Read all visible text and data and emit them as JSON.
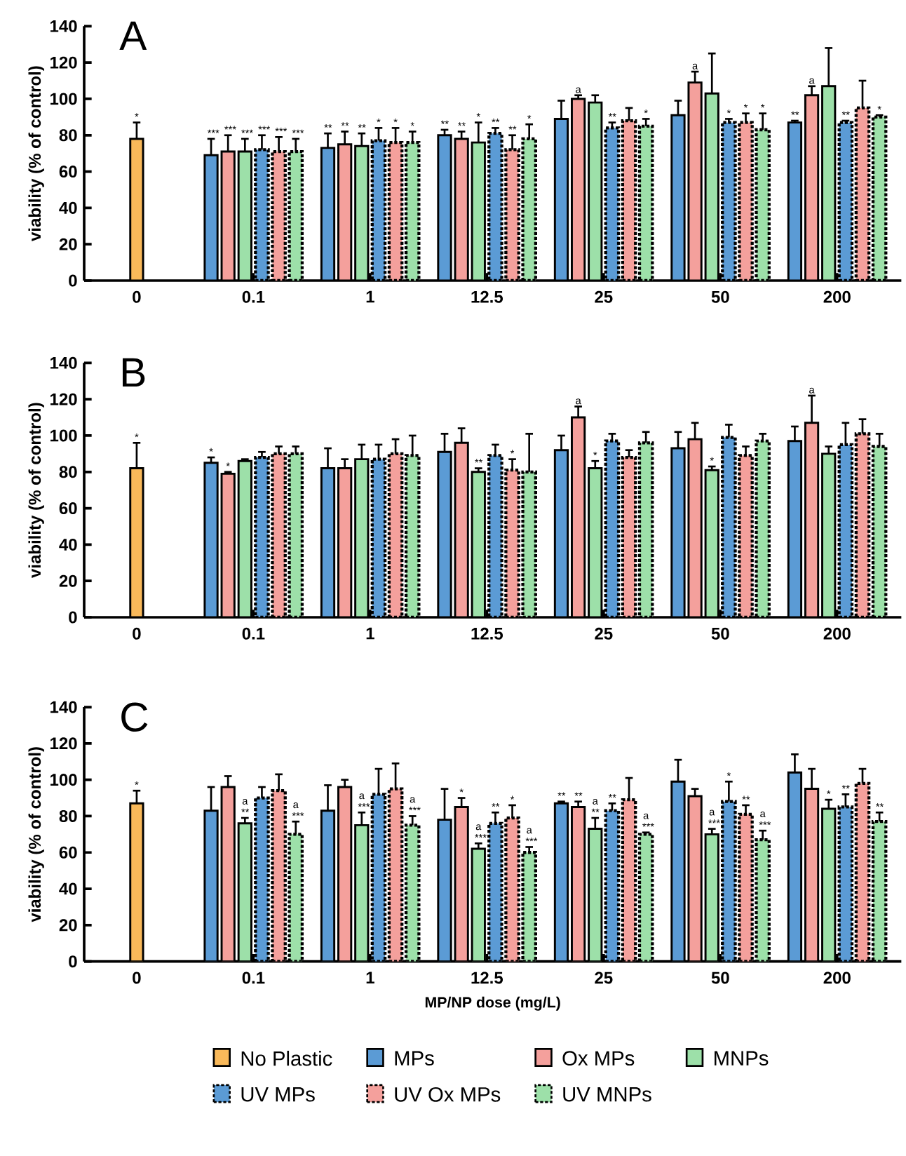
{
  "chart_data": [
    {
      "type": "bar",
      "title": "A",
      "ylabel": "viability (% of control)",
      "categories": [
        "0",
        "0.1",
        "1",
        "12.5",
        "25",
        "50",
        "200"
      ],
      "ylim": [
        0,
        140
      ],
      "yticks": [
        0,
        20,
        40,
        60,
        80,
        100,
        120,
        140
      ],
      "legend": false,
      "series": [
        {
          "color": "#f9b95a",
          "values": [
            78,
            null,
            null,
            null,
            null,
            null,
            null
          ],
          "errors": [
            9,
            null,
            null,
            null,
            null,
            null,
            null
          ],
          "value_labels": [
            "*",
            null,
            null,
            null,
            null,
            null,
            null
          ]
        },
        {
          "color": "#5b9bd5",
          "values": [
            null,
            69,
            73,
            80,
            89,
            91,
            87
          ],
          "errors": [
            null,
            9,
            8,
            3,
            10,
            8,
            1
          ],
          "value_labels": [
            null,
            "***",
            "**",
            "**",
            null,
            null,
            "**"
          ]
        },
        {
          "color": "#f4a09c",
          "values": [
            null,
            71,
            75,
            78,
            100,
            109,
            102
          ],
          "errors": [
            null,
            9,
            7,
            4,
            2,
            6,
            5
          ],
          "value_labels": [
            null,
            "***",
            "**",
            "**",
            "a",
            "a",
            "a"
          ]
        },
        {
          "color": "#9de0a9",
          "values": [
            null,
            71,
            74,
            76,
            98,
            103,
            107
          ],
          "errors": [
            null,
            7,
            7,
            11,
            4,
            22,
            21
          ],
          "value_labels": [
            null,
            "***",
            "**",
            "*",
            null,
            null,
            null
          ]
        },
        {
          "color": "#5b9bd5",
          "line_style": "dotted",
          "values": [
            null,
            72,
            77,
            81,
            84,
            87,
            87
          ],
          "errors": [
            null,
            8,
            7,
            3,
            3,
            2,
            1
          ],
          "value_labels": [
            null,
            "***",
            "*",
            "**",
            "**",
            "*",
            "**"
          ]
        },
        {
          "color": "#f4a09c",
          "line_style": "dotted",
          "values": [
            null,
            71,
            76,
            72,
            88,
            87,
            95
          ],
          "errors": [
            null,
            8,
            8,
            8,
            7,
            5,
            15
          ],
          "value_labels": [
            null,
            "***",
            "*",
            "**",
            null,
            "*",
            null
          ]
        },
        {
          "color": "#9de0a9",
          "line_style": "dotted",
          "values": [
            null,
            71,
            76,
            78,
            85,
            83,
            90
          ],
          "errors": [
            null,
            7,
            6,
            8,
            4,
            9,
            1
          ],
          "value_labels": [
            null,
            "***",
            "*",
            "*",
            "*",
            "*",
            "*"
          ]
        }
      ]
    },
    {
      "type": "bar",
      "title": "B",
      "ylabel": "viability (% of control)",
      "categories": [
        "0",
        "0.1",
        "1",
        "12.5",
        "25",
        "50",
        "200"
      ],
      "ylim": [
        0,
        140
      ],
      "yticks": [
        0,
        20,
        40,
        60,
        80,
        100,
        120,
        140
      ],
      "legend": false,
      "series": [
        {
          "color": "#f9b95a",
          "values": [
            82,
            null,
            null,
            null,
            null,
            null,
            null
          ],
          "errors": [
            14,
            null,
            null,
            null,
            null,
            null,
            null
          ],
          "value_labels": [
            "*",
            null,
            null,
            null,
            null,
            null,
            null
          ]
        },
        {
          "color": "#5b9bd5",
          "values": [
            null,
            85,
            82,
            91,
            92,
            93,
            97
          ],
          "errors": [
            null,
            3,
            11,
            10,
            8,
            9,
            8
          ],
          "value_labels": [
            null,
            "*",
            null,
            null,
            null,
            null,
            null
          ]
        },
        {
          "color": "#f4a09c",
          "values": [
            null,
            79,
            82,
            96,
            110,
            98,
            107
          ],
          "errors": [
            null,
            1,
            5,
            8,
            6,
            9,
            15
          ],
          "value_labels": [
            null,
            "*",
            null,
            null,
            "a",
            null,
            "a"
          ]
        },
        {
          "color": "#9de0a9",
          "values": [
            null,
            86,
            87,
            80,
            82,
            81,
            90
          ],
          "errors": [
            null,
            1,
            8,
            2,
            4,
            2,
            4
          ],
          "value_labels": [
            null,
            null,
            null,
            "**",
            "*",
            "*",
            null
          ]
        },
        {
          "color": "#5b9bd5",
          "line_style": "dotted",
          "values": [
            null,
            88,
            87,
            89,
            97,
            99,
            95
          ],
          "errors": [
            null,
            3,
            8,
            6,
            4,
            7,
            12
          ]
        },
        {
          "color": "#f4a09c",
          "line_style": "dotted",
          "values": [
            null,
            90,
            90,
            81,
            88,
            89,
            101
          ],
          "errors": [
            null,
            4,
            8,
            6,
            4,
            5,
            8
          ],
          "value_labels": [
            null,
            null,
            null,
            "*",
            null,
            null,
            null
          ]
        },
        {
          "color": "#9de0a9",
          "line_style": "dotted",
          "values": [
            null,
            90,
            89,
            80,
            96,
            97,
            94
          ],
          "errors": [
            null,
            4,
            11,
            21,
            6,
            4,
            7
          ]
        }
      ]
    },
    {
      "type": "bar",
      "title": "C",
      "xlabel": "MP/NP dose (mg/L)",
      "ylabel": "viability (% of control)",
      "categories": [
        "0",
        "0.1",
        "1",
        "12.5",
        "25",
        "50",
        "200"
      ],
      "ylim": [
        0,
        140
      ],
      "yticks": [
        0,
        20,
        40,
        60,
        80,
        100,
        120,
        140
      ],
      "legend": "bottom",
      "series": [
        {
          "name": "No Plastic",
          "color": "#f9b95a",
          "values": [
            87,
            null,
            null,
            null,
            null,
            null,
            null
          ],
          "errors": [
            7,
            null,
            null,
            null,
            null,
            null,
            null
          ],
          "value_labels": [
            "*",
            null,
            null,
            null,
            null,
            null,
            null
          ]
        },
        {
          "name": "MPs",
          "color": "#5b9bd5",
          "values": [
            null,
            83,
            83,
            78,
            87,
            99,
            104
          ],
          "errors": [
            null,
            13,
            14,
            17,
            1,
            12,
            10
          ],
          "value_labels": [
            null,
            null,
            null,
            null,
            "**",
            null,
            null
          ]
        },
        {
          "name": "Ox MPs",
          "color": "#f4a09c",
          "values": [
            null,
            96,
            96,
            85,
            85,
            91,
            95
          ],
          "errors": [
            null,
            6,
            4,
            5,
            3,
            4,
            11
          ],
          "value_labels": [
            null,
            null,
            null,
            "*",
            "**",
            null,
            null
          ]
        },
        {
          "name": "MNPs",
          "color": "#9de0a9",
          "values": [
            null,
            76,
            75,
            62,
            73,
            70,
            84
          ],
          "errors": [
            null,
            3,
            7,
            3,
            6,
            3,
            5
          ],
          "value_labels": [
            null,
            "a **",
            "a ***",
            "a ***",
            "a **",
            "a ***",
            "*"
          ]
        },
        {
          "name": "UV MPs",
          "color": "#5b9bd5",
          "line_style": "dotted",
          "values": [
            null,
            90,
            92,
            76,
            83,
            88,
            85
          ],
          "errors": [
            null,
            6,
            14,
            6,
            4,
            11,
            7
          ],
          "value_labels": [
            null,
            null,
            null,
            "**",
            "**",
            "*",
            "**"
          ]
        },
        {
          "name": "UV Ox MPs",
          "color": "#f4a09c",
          "line_style": "dotted",
          "values": [
            null,
            94,
            95,
            79,
            89,
            81,
            98
          ],
          "errors": [
            null,
            9,
            14,
            7,
            12,
            5,
            8
          ],
          "value_labels": [
            null,
            null,
            null,
            "*",
            null,
            "**",
            null
          ]
        },
        {
          "name": "UV MNPs",
          "color": "#9de0a9",
          "line_style": "dotted",
          "values": [
            null,
            70,
            75,
            60,
            70,
            67,
            77
          ],
          "errors": [
            null,
            7,
            5,
            3,
            1,
            5,
            5
          ],
          "value_labels": [
            null,
            "a ***",
            "a ***",
            "a ***",
            "a ***",
            "a ***",
            "**"
          ]
        }
      ]
    }
  ]
}
